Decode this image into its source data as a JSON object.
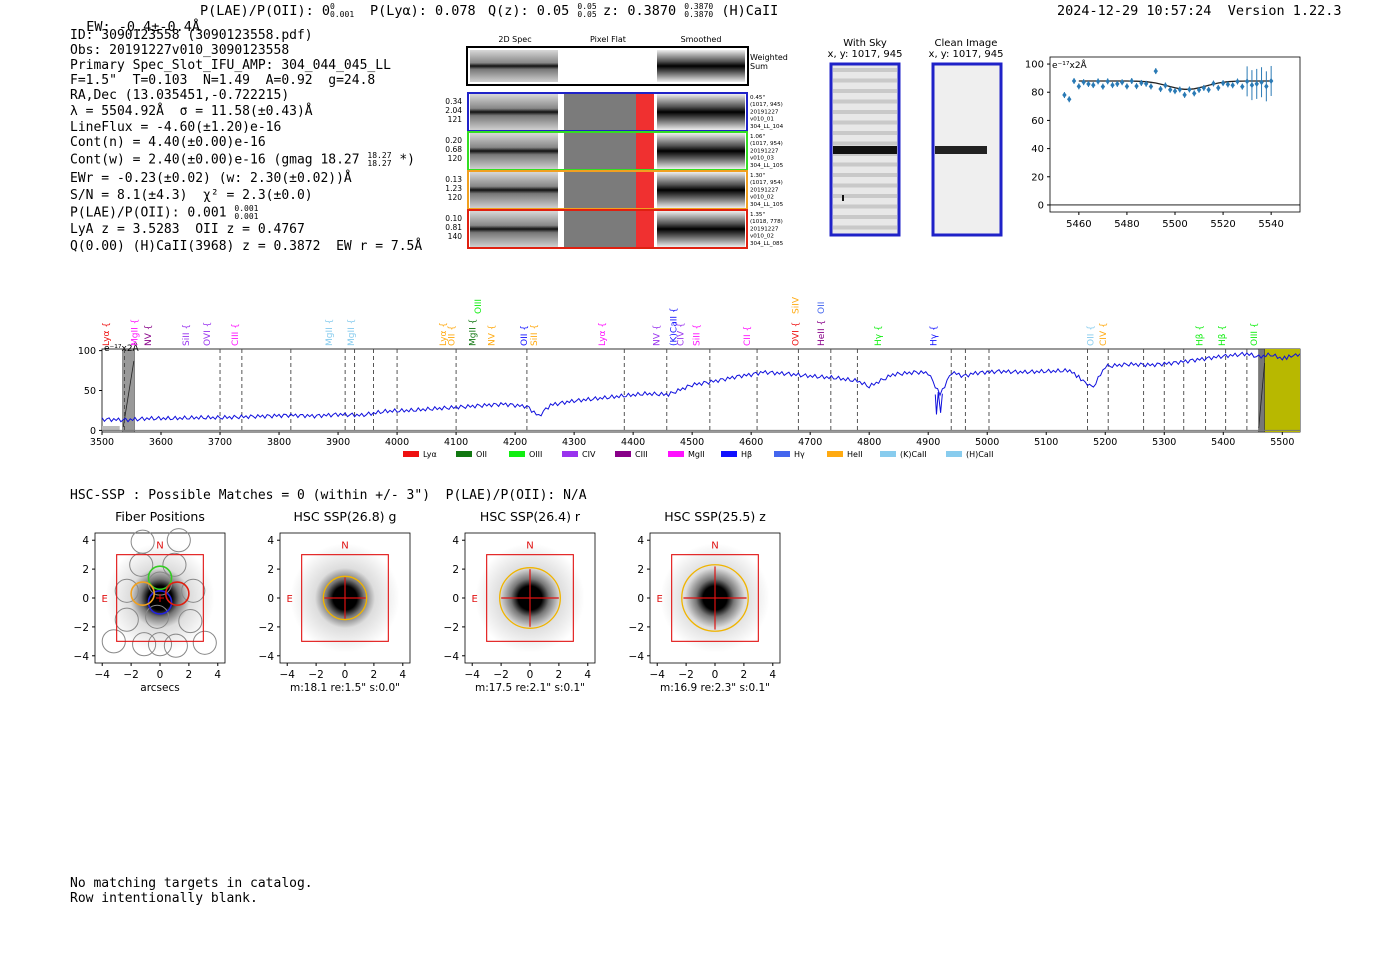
{
  "header": {
    "ew_label": "EW: -0.4±-0.4Å",
    "plae_label": "P(LAE)/P(OII): 0",
    "plae_sup": "0",
    "plae_sub": "0.001",
    "plya_label": "P(Lyα): 0.078",
    "qz_label": "Q(z): 0.05",
    "qz_sup": "0.05",
    "qz_sub": "0.05",
    "z_label": "z: 0.3870",
    "z_sup": "0.3870",
    "z_sub": "0.3870",
    "z_line": "(H)CaII",
    "timestamp": "2024-12-29 10:57:24",
    "version": "Version 1.22.3"
  },
  "info": {
    "id": "ID: 3090123558 (3090123558.pdf)",
    "obs": "Obs: 20191227v010_3090123558",
    "spec": "Primary Spec_Slot_IFU_AMP: 304_044_045_LL",
    "fwhm": "F=1.5\"  T=0.103  N=1.49  A=0.92  g=24.8",
    "radec": "RA,Dec (13.035451,-0.722215)",
    "lambda": "λ = 5504.92Å  σ = 11.58(±0.43)Å",
    "lineflux": "LineFlux = -4.60(±1.20)e-16",
    "contn": "Cont(n) = 4.40(±0.00)e-16",
    "contw": "Cont(w) = 2.40(±0.00)e-16 (gmag 18.27",
    "contw_sup": "18.27",
    "contw_sub": "18.27",
    "contw_end": "*)",
    "ewr": "EWr = -0.23(±0.02) (w: 2.30(±0.02))Å",
    "sn": "S/N = 8.1(±4.3)  χ² = 2.3(±0.0)",
    "plae": "P(LAE)/P(OII): 0.001",
    "plae_sup": "0.001",
    "plae_sub": "0.001",
    "lya": "LyA z = 3.5283  OII z = 0.4767",
    "q": "Q(0.00) (H)CaII(3968) z = 0.3872  EW r = 7.5Å"
  },
  "cutouts": {
    "col_labels": [
      "2D Spec",
      "Pixel Flat",
      "Smoothed"
    ],
    "weighted_label": "Weighted Sum",
    "rows": [
      {
        "vals": [
          "0.34",
          "2.04",
          "121"
        ],
        "notes": [
          "0.45\"",
          "(1017, 945)",
          "20191227",
          "v010_01",
          "304_LL_104"
        ],
        "color": "#1f22c8"
      },
      {
        "vals": [
          "0.20",
          "0.68",
          "120"
        ],
        "notes": [
          "1.06\"",
          "(1017, 954)",
          "20191227",
          "v010_03",
          "304_LL_105"
        ],
        "color": "#33dd22"
      },
      {
        "vals": [
          "0.13",
          "1.23",
          "120"
        ],
        "notes": [
          "1.30\"",
          "(1017, 954)",
          "20191227",
          "v010_02",
          "304_LL_105"
        ],
        "color": "#f0a020"
      },
      {
        "vals": [
          "0.10",
          "0.81",
          "140"
        ],
        "notes": [
          "1.35\"",
          "(1018, 778)",
          "20191227",
          "v010_02",
          "304_LL_085"
        ],
        "color": "#e02010"
      }
    ]
  },
  "sky_panels": [
    {
      "title": "With Sky",
      "coords": "x, y: 1017, 945"
    },
    {
      "title": "Clean Image",
      "coords": "x, y: 1017, 945"
    }
  ],
  "zoom_chart": {
    "type": "scatter",
    "unit_label": "e⁻¹⁷x2Å",
    "x_ticks": [
      "5460",
      "5480",
      "5500",
      "5520",
      "5540"
    ],
    "y_ticks": [
      "0",
      "20",
      "40",
      "60",
      "80",
      "100"
    ],
    "xlim": [
      5448,
      5552
    ],
    "ylim": [
      -5,
      105
    ]
  },
  "chart_data": {
    "type": "line",
    "title": "",
    "xlabel": "",
    "ylabel": "e⁻¹⁷x2Å",
    "xlim": [
      3500,
      5530
    ],
    "ylim": [
      -2,
      102
    ],
    "x_ticks": [
      "3500",
      "3600",
      "3700",
      "3800",
      "3900",
      "4000",
      "4100",
      "4200",
      "4300",
      "4400",
      "4500",
      "4600",
      "4700",
      "4800",
      "4900",
      "5000",
      "5100",
      "5200",
      "5300",
      "5400",
      "5500"
    ],
    "y_ticks": [
      "0",
      "50",
      "100"
    ],
    "x": [
      3500,
      3540,
      3580,
      3620,
      3660,
      3700,
      3740,
      3780,
      3820,
      3860,
      3900,
      3940,
      3980,
      4020,
      4060,
      4100,
      4140,
      4180,
      4220,
      4240,
      4260,
      4300,
      4340,
      4380,
      4420,
      4460,
      4500,
      4540,
      4580,
      4600,
      4620,
      4660,
      4700,
      4740,
      4780,
      4800,
      4840,
      4880,
      4900,
      4920,
      4940,
      4960,
      4980,
      5020,
      5060,
      5100,
      5140,
      5170,
      5180,
      5200,
      5240,
      5280,
      5320,
      5360,
      5400,
      5440,
      5460,
      5480,
      5500,
      5530
    ],
    "y": [
      14,
      13,
      15,
      15,
      16,
      16,
      17,
      18,
      19,
      18,
      20,
      19,
      24,
      25,
      27,
      29,
      31,
      33,
      30,
      18,
      32,
      37,
      40,
      43,
      46,
      45,
      57,
      62,
      68,
      70,
      73,
      71,
      68,
      66,
      62,
      55,
      70,
      73,
      72,
      45,
      73,
      68,
      72,
      74,
      73,
      74,
      75,
      58,
      55,
      80,
      83,
      82,
      85,
      89,
      93,
      96,
      92,
      95,
      90,
      96
    ],
    "series_label": "spectrum",
    "legend": [
      "Lyα",
      "OII",
      "OIII",
      "CIV",
      "CIII",
      "MgII",
      "Hβ",
      "Hγ",
      "HeII",
      "(K)CaII",
      "(H)CaII"
    ],
    "legend_colors": [
      "#ee1111",
      "#117711",
      "#11ee11",
      "#9933ee",
      "#880088",
      "#ff11ff",
      "#1111ff",
      "#4466ee",
      "#ffaa11",
      "#88ccee",
      "#88ccee"
    ],
    "line_labels": [
      {
        "name": "Lyα",
        "x": 3507,
        "color": "#ee1111"
      },
      {
        "name": "MgII",
        "x": 3555,
        "color": "#ff11ff"
      },
      {
        "name": "NV",
        "x": 3578,
        "color": "#880088"
      },
      {
        "name": "SiII",
        "x": 3642,
        "color": "#9933ee"
      },
      {
        "name": "OVI",
        "x": 3678,
        "color": "#9933ee"
      },
      {
        "name": "CIII",
        "x": 3725,
        "color": "#ff11ff"
      },
      {
        "name": "MgII",
        "x": 3885,
        "color": "#88ccee"
      },
      {
        "name": "MgII",
        "x": 3922,
        "color": "#88ccee"
      },
      {
        "name": "Lyα",
        "x": 4078,
        "color": "#ffaa11"
      },
      {
        "name": "OII",
        "x": 4092,
        "color": "#ffaa11"
      },
      {
        "name": "MgII",
        "x": 4128,
        "color": "#117711"
      },
      {
        "name": "NV",
        "x": 4160,
        "color": "#ffaa11"
      },
      {
        "name": "OII",
        "x": 4215,
        "color": "#1111ff"
      },
      {
        "name": "SiII",
        "x": 4232,
        "color": "#ffaa11"
      },
      {
        "name": "Lyα",
        "x": 4347,
        "color": "#ff11ff"
      },
      {
        "name": "NV",
        "x": 4440,
        "color": "#9933ee"
      },
      {
        "name": "(K)CaII",
        "x": 4468,
        "color": "#1111ff"
      },
      {
        "name": "CIV",
        "x": 4480,
        "color": "#9933ee"
      },
      {
        "name": "SiII",
        "x": 4507,
        "color": "#ff11ff"
      },
      {
        "name": "CII",
        "x": 4593,
        "color": "#ff11ff"
      },
      {
        "name": "OVI",
        "x": 4675,
        "color": "#ee1111"
      },
      {
        "name": "HeII",
        "x": 4718,
        "color": "#880088"
      },
      {
        "name": "Hγ",
        "x": 4815,
        "color": "#11ee11"
      },
      {
        "name": "Hγ",
        "x": 4909,
        "color": "#1111ff"
      },
      {
        "name": "OII",
        "x": 5175,
        "color": "#88ccee"
      },
      {
        "name": "CIV",
        "x": 5196,
        "color": "#ffaa11"
      },
      {
        "name": "Hβ",
        "x": 5360,
        "color": "#11ee11"
      },
      {
        "name": "Hβ",
        "x": 5398,
        "color": "#11ee11"
      },
      {
        "name": "OIII",
        "x": 5452,
        "color": "#11ee11"
      }
    ],
    "upper_labels": [
      {
        "name": "OIII",
        "x": 4137,
        "color": "#11ee11"
      },
      {
        "name": "SiIV",
        "x": 4675,
        "color": "#ffaa11"
      },
      {
        "name": "OII",
        "x": 4718,
        "color": "#4466ee"
      }
    ],
    "dashed_lines": [
      3538,
      3700,
      3737,
      3820,
      3912,
      3928,
      3960,
      4000,
      4100,
      4220,
      4385,
      4457,
      4530,
      4610,
      4680,
      4735,
      4780,
      4939,
      4963,
      5003,
      5170,
      5205,
      5265,
      5300,
      5333,
      5370,
      5404,
      5440
    ]
  },
  "hsc": {
    "heading": "HSC-SSP : Possible Matches = 0 (within +/- 3\")  P(LAE)/P(OII): N/A",
    "panels": [
      {
        "title": "Fiber Positions",
        "caption": "arcsecs"
      },
      {
        "title": "HSC SSP(26.8) g",
        "caption": "m:18.1  re:1.5\"  s:0.0\""
      },
      {
        "title": "HSC SSP(26.4) r",
        "caption": "m:17.5  re:2.1\"  s:0.1\""
      },
      {
        "title": "HSC SSP(25.5) z",
        "caption": "m:16.9  re:2.3\"  s:0.1\""
      }
    ],
    "ticks": [
      "−4",
      "−2",
      "0",
      "2",
      "4"
    ],
    "north": "N",
    "east": "E"
  },
  "footer": {
    "line1": "No matching targets in catalog.",
    "line2": "Row intentionally blank."
  }
}
